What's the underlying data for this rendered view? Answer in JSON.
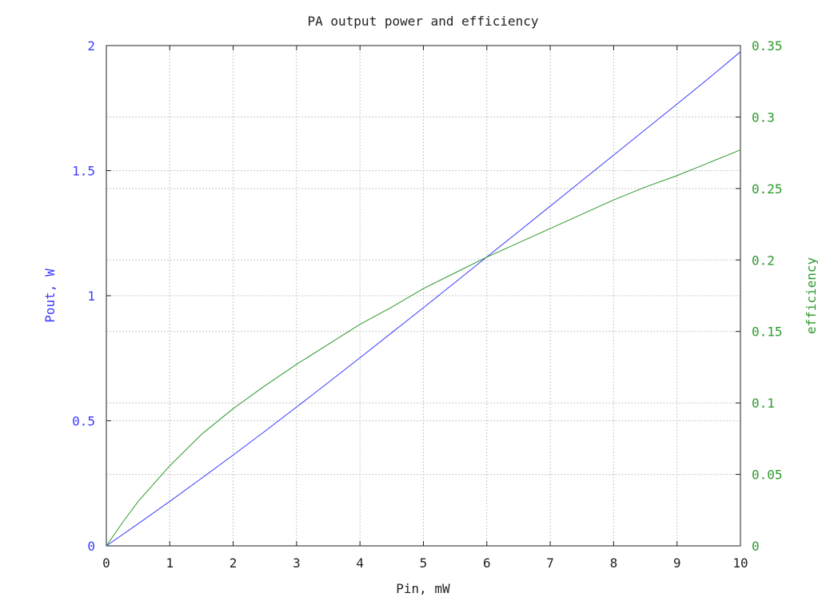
{
  "chart_data": {
    "type": "line",
    "title": "PA output power and efficiency",
    "xlabel": "Pin, mW",
    "xlim": [
      0,
      10
    ],
    "xticks": [
      "0",
      "1",
      "2",
      "3",
      "4",
      "5",
      "6",
      "7",
      "8",
      "9",
      "10"
    ],
    "grid": true,
    "y_left": {
      "label": "Pout, W",
      "lim": [
        0,
        2
      ],
      "ticks": [
        "0",
        "0.5",
        "1",
        "1.5",
        "2"
      ],
      "color": "#3b3bff"
    },
    "y_right": {
      "label": "efficiency",
      "lim": [
        0,
        0.35
      ],
      "ticks": [
        "0",
        "0.05",
        "0.1",
        "0.15",
        "0.2",
        "0.25",
        "0.3",
        "0.35"
      ],
      "color": "#2e9a2e"
    },
    "series": [
      {
        "axis": "left",
        "color": "#3b3bff",
        "x": [
          0,
          0.5,
          1,
          1.5,
          2,
          2.5,
          3,
          3.5,
          4,
          4.5,
          5,
          5.5,
          6,
          6.5,
          7,
          7.5,
          8,
          8.5,
          9,
          9.5,
          10
        ],
        "y": [
          0,
          0.088,
          0.178,
          0.27,
          0.363,
          0.458,
          0.555,
          0.653,
          0.752,
          0.852,
          0.952,
          1.053,
          1.155,
          1.256,
          1.358,
          1.46,
          1.562,
          1.664,
          1.766,
          1.869,
          1.975
        ]
      },
      {
        "axis": "right",
        "color": "#2e9a2e",
        "x": [
          0,
          0.25,
          0.5,
          1,
          1.5,
          2,
          2.5,
          3,
          3.5,
          4,
          4.5,
          5,
          5.5,
          6,
          6.5,
          7,
          7.5,
          8,
          8.5,
          9,
          9.5,
          10
        ],
        "y": [
          0,
          0.016,
          0.031,
          0.056,
          0.078,
          0.096,
          0.112,
          0.127,
          0.141,
          0.155,
          0.167,
          0.18,
          0.191,
          0.202,
          0.212,
          0.222,
          0.232,
          0.242,
          0.251,
          0.259,
          0.268,
          0.277
        ]
      }
    ]
  }
}
